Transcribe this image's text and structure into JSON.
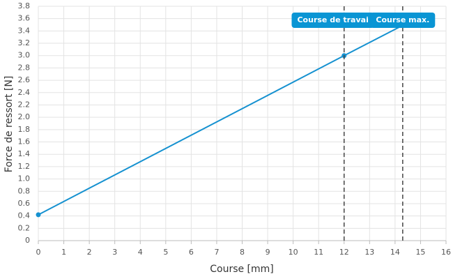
{
  "chart_data": {
    "type": "line",
    "x_label": "Course [mm]",
    "y_label": "Force de ressort [N]",
    "xlim": [
      0,
      16
    ],
    "xticks": [
      0,
      1,
      2,
      3,
      4,
      5,
      6,
      7,
      8,
      9,
      10,
      11,
      12,
      13,
      14,
      15,
      16
    ],
    "ylim": [
      0,
      3.8
    ],
    "yticks": [
      0,
      0.2,
      0.4,
      0.6,
      0.8,
      {
        "value": 1,
        "label": "1.0"
      },
      1.2,
      1.4,
      1.6,
      1.8,
      {
        "value": 2,
        "label": "2.0"
      },
      2.2,
      2.4,
      2.6,
      2.8,
      {
        "value": 3,
        "label": "3.0"
      },
      3.2,
      3.4,
      3.6,
      3.8
    ],
    "grid": true,
    "series": [
      {
        "color": "#1591d0",
        "x": [
          0,
          12,
          14.3
        ],
        "values": [
          0.42,
          3.0,
          3.49
        ]
      }
    ],
    "vlines": [
      {
        "x": 12,
        "label": "Course de travai"
      },
      {
        "x": 14.3,
        "label": "Course max."
      }
    ],
    "flag_color": "#0a95d4"
  }
}
